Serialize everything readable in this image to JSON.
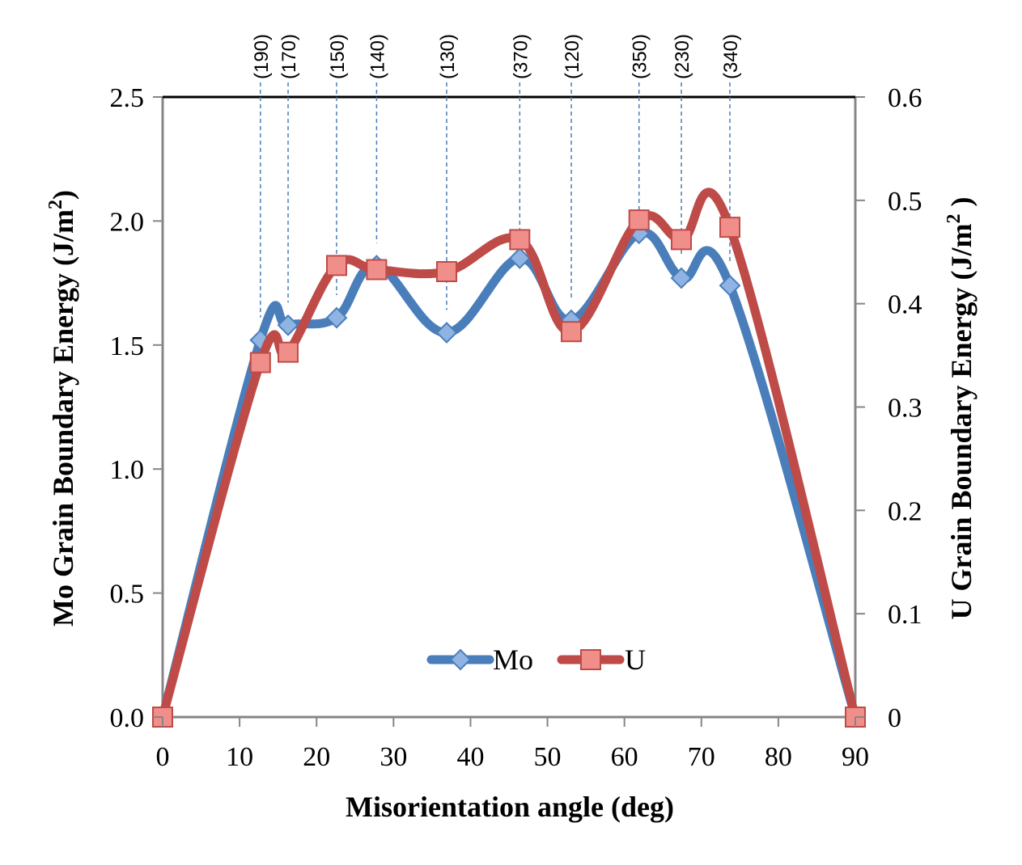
{
  "chart_data": {
    "type": "line",
    "xlabel": "Misorientation  angle (deg)",
    "ylabel_left": "Mo Grain  Boundary Energy (J/m",
    "ylabel_left_sup": "2",
    "ylabel_left_end": ")",
    "ylabel_right": "U Grain Boundary Energy (J/m",
    "ylabel_right_sup": "2",
    "ylabel_right_end": " )",
    "xlim": [
      0,
      90
    ],
    "ylim_left": [
      0,
      2.5
    ],
    "ylim_right": [
      0,
      0.6
    ],
    "x_ticks": [
      "0",
      "10",
      "20",
      "30",
      "40",
      "50",
      "60",
      "70",
      "80",
      "90"
    ],
    "y_left_ticks": [
      "0.0",
      "0.5",
      "1.0",
      "1.5",
      "2.0",
      "2.5"
    ],
    "y_right_ticks": [
      "0",
      "0.1",
      "0.2",
      "0.3",
      "0.4",
      "0.5",
      "0.6"
    ],
    "series": [
      {
        "name": "Mo",
        "axis": "left",
        "color": "#4a7ebb",
        "marker": "diamond",
        "x": [
          0,
          12.7,
          16.3,
          22.6,
          27.8,
          36.9,
          46.4,
          53.1,
          61.9,
          67.4,
          73.7,
          90
        ],
        "y": [
          0.0,
          1.52,
          1.58,
          1.61,
          1.82,
          1.55,
          1.85,
          1.6,
          1.95,
          1.77,
          1.74,
          0.0
        ]
      },
      {
        "name": "U",
        "axis": "right",
        "color": "#be4b48",
        "marker": "square",
        "x": [
          0,
          12.7,
          16.3,
          22.6,
          27.8,
          36.9,
          46.4,
          53.1,
          61.9,
          67.4,
          73.7,
          90
        ],
        "y": [
          0.0,
          0.343,
          0.353,
          0.437,
          0.433,
          0.431,
          0.462,
          0.373,
          0.481,
          0.462,
          0.474,
          0.0
        ]
      }
    ],
    "plane_labels": [
      {
        "text": "(190)",
        "x": 12.7
      },
      {
        "text": "(170)",
        "x": 16.3
      },
      {
        "text": "(150)",
        "x": 22.6
      },
      {
        "text": "(140)",
        "x": 27.8
      },
      {
        "text": "(130)",
        "x": 36.9
      },
      {
        "text": "(370)",
        "x": 46.4
      },
      {
        "text": "(120)",
        "x": 53.1
      },
      {
        "text": "(350)",
        "x": 61.9
      },
      {
        "text": "(230)",
        "x": 67.4
      },
      {
        "text": "(340)",
        "x": 73.7
      }
    ],
    "legend": {
      "placement": "bottom-center",
      "entries": [
        "Mo",
        "U"
      ]
    },
    "grid": false,
    "colors": {
      "frame": "#868686",
      "top_line": "#000000",
      "guide": "#4a7ebb"
    }
  }
}
